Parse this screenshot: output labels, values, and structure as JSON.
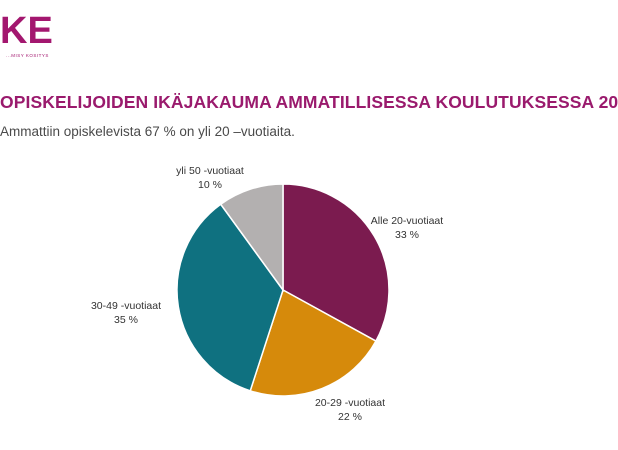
{
  "branding": {
    "logo_text": "KE",
    "logo_subtext": "...MISY KOSITYS",
    "brand_color": "#a3176f",
    "title_color": "#9a1a6d"
  },
  "title": "OPISKELIJOIDEN IKÄJAKAUMA AMMATILLISESSA KOULUTUKSESSA 20",
  "subtitle": "Ammattiin opiskelevista 67 % on yli 20 –vuotiaita.",
  "chart_data": {
    "type": "pie",
    "slices": [
      {
        "name": "Alle 20-vuotiaat",
        "value": 33,
        "value_label": "33 %",
        "color": "#7b1b4f"
      },
      {
        "name": "20-29 -vuotiaat",
        "value": 22,
        "value_label": "22 %",
        "color": "#d68a0b"
      },
      {
        "name": "30-49 -vuotiaat",
        "value": 35,
        "value_label": "35 %",
        "color": "#0f7180"
      },
      {
        "name": "yli 50 -vuotiaat",
        "value": 10,
        "value_label": "10 %",
        "color": "#b3b0b0"
      }
    ],
    "start": "12 o'clock",
    "direction": "clockwise",
    "slice_border_color": "#ffffff"
  }
}
